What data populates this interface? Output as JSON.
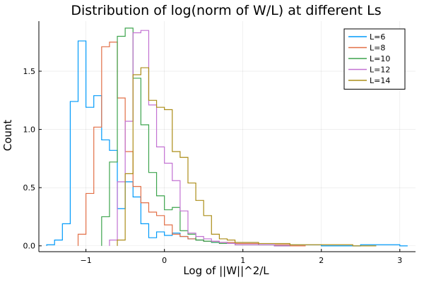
{
  "chart_data": {
    "type": "histogram",
    "title": "Distribution of log(norm of W/L) at different Ls",
    "xlabel": "Log of ||W||^2/L",
    "ylabel": "Count",
    "xlim": [
      -1.6,
      3.2
    ],
    "ylim": [
      -0.05,
      1.93
    ],
    "xticks": [
      -1,
      0,
      1,
      2,
      3
    ],
    "xtick_labels": [
      "−1",
      "0",
      "1",
      "2",
      "3"
    ],
    "yticks": [
      0.0,
      0.5,
      1.0,
      1.5
    ],
    "ytick_labels": [
      "0.0",
      "0.5",
      "1.0",
      "1.5"
    ],
    "grid": true,
    "legend_position": "top-right",
    "series": [
      {
        "name": "L=6",
        "color": "#009AFA",
        "edges": [
          -1.5,
          -1.4,
          -1.3,
          -1.2,
          -1.1,
          -1.0,
          -0.9,
          -0.8,
          -0.7,
          -0.6,
          -0.5,
          -0.4,
          -0.3,
          -0.2,
          -0.1,
          0.0,
          0.1,
          0.2,
          0.3,
          0.4,
          0.5,
          0.6,
          0.8,
          1.0,
          1.2,
          1.5,
          2.0,
          2.5,
          3.0,
          3.1
        ],
        "values": [
          0.01,
          0.05,
          0.19,
          1.24,
          1.76,
          1.19,
          1.29,
          0.91,
          0.82,
          0.32,
          0.55,
          0.42,
          0.19,
          0.07,
          0.12,
          0.09,
          0.11,
          0.08,
          0.06,
          0.05,
          0.04,
          0.03,
          0.02,
          0.02,
          0.01,
          0.01,
          0.0,
          0.01,
          0.0
        ]
      },
      {
        "name": "L=8",
        "color": "#E26F46",
        "edges": [
          -1.1,
          -1.0,
          -0.9,
          -0.8,
          -0.7,
          -0.6,
          -0.5,
          -0.4,
          -0.3,
          -0.2,
          -0.1,
          0.0,
          0.1,
          0.2,
          0.3,
          0.4,
          0.5,
          0.6,
          0.7,
          0.8,
          0.9,
          1.0,
          1.2,
          1.4,
          1.6,
          1.8
        ],
        "values": [
          0.1,
          0.45,
          1.02,
          1.71,
          1.75,
          1.27,
          0.81,
          0.51,
          0.37,
          0.29,
          0.26,
          0.18,
          0.1,
          0.08,
          0.06,
          0.05,
          0.04,
          0.04,
          0.03,
          0.03,
          0.02,
          0.02,
          0.01,
          0.01,
          0.0
        ]
      },
      {
        "name": "L=10",
        "color": "#3DA44D",
        "edges": [
          -0.8,
          -0.7,
          -0.6,
          -0.5,
          -0.4,
          -0.3,
          -0.2,
          -0.1,
          0.0,
          0.1,
          0.2,
          0.3,
          0.4,
          0.5,
          0.6,
          0.7,
          0.8,
          0.9,
          1.0,
          1.2,
          1.4,
          1.6
        ],
        "values": [
          0.25,
          0.72,
          1.8,
          1.87,
          1.44,
          1.04,
          0.63,
          0.43,
          0.31,
          0.33,
          0.13,
          0.1,
          0.05,
          0.04,
          0.03,
          0.02,
          0.02,
          0.01,
          0.01,
          0.01,
          0.0
        ]
      },
      {
        "name": "L=12",
        "color": "#C271D2",
        "edges": [
          -0.7,
          -0.6,
          -0.5,
          -0.4,
          -0.3,
          -0.2,
          -0.1,
          0.0,
          0.1,
          0.2,
          0.3,
          0.4,
          0.5,
          0.6,
          0.7,
          0.8,
          0.9,
          1.0,
          1.2,
          1.4,
          1.6
        ],
        "values": [
          0.05,
          0.55,
          1.07,
          1.83,
          1.85,
          1.21,
          0.85,
          0.71,
          0.56,
          0.3,
          0.11,
          0.08,
          0.06,
          0.04,
          0.03,
          0.02,
          0.01,
          0.01,
          0.01,
          0.0
        ]
      },
      {
        "name": "L=14",
        "color": "#AC8D18",
        "edges": [
          -0.6,
          -0.5,
          -0.4,
          -0.3,
          -0.2,
          -0.1,
          0.0,
          0.1,
          0.2,
          0.3,
          0.4,
          0.5,
          0.6,
          0.7,
          0.8,
          0.9,
          1.0,
          1.2,
          1.4,
          1.6,
          1.8,
          2.0,
          2.2,
          2.4,
          2.7
        ],
        "values": [
          0.05,
          0.62,
          1.47,
          1.53,
          1.25,
          1.19,
          1.17,
          0.81,
          0.76,
          0.54,
          0.39,
          0.26,
          0.1,
          0.06,
          0.05,
          0.03,
          0.03,
          0.02,
          0.02,
          0.01,
          0.01,
          0.01,
          0.01,
          0.0
        ]
      }
    ]
  }
}
